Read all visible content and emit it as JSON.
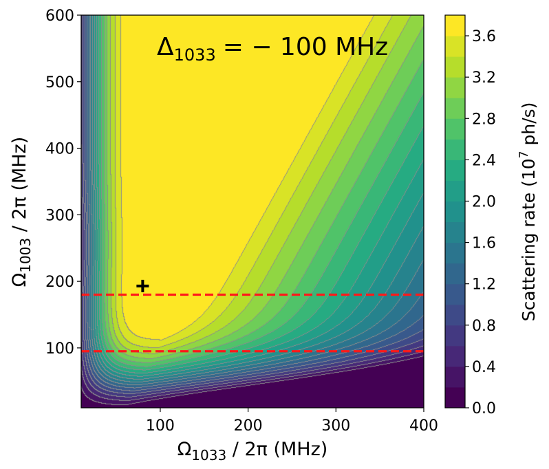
{
  "chart_data": {
    "type": "heatmap",
    "subtype": "filled-contour",
    "title": "",
    "annotation": {
      "delta_symbol": "Δ",
      "subscript": "1033",
      "text": "= − 100 MHz"
    },
    "x_axis": {
      "label": {
        "main": "Ω",
        "sub": "1033",
        "rest": " / 2π (MHz)"
      },
      "range": [
        10,
        400
      ],
      "ticks": [
        100,
        200,
        300,
        400
      ],
      "tick_labels": [
        "100",
        "200",
        "300",
        "400"
      ]
    },
    "y_axis": {
      "label": {
        "main": "Ω",
        "sub": "1003",
        "rest": " / 2π (MHz)"
      },
      "range": [
        10,
        600
      ],
      "ticks": [
        100,
        200,
        300,
        400,
        500,
        600
      ],
      "tick_labels": [
        "100",
        "200",
        "300",
        "400",
        "500",
        "600"
      ]
    },
    "colorbar": {
      "label": "Scattering rate (10",
      "label_sup": "7",
      "label_end": " ph/s)",
      "range": [
        0,
        3.8
      ],
      "levels": [
        0.0,
        0.2,
        0.4,
        0.6,
        0.8,
        1.0,
        1.2,
        1.4,
        1.6,
        1.8,
        2.0,
        2.2,
        2.4,
        2.6,
        2.8,
        3.0,
        3.2,
        3.4,
        3.6,
        3.8
      ],
      "ticks": [
        0.0,
        0.4,
        0.8,
        1.2,
        1.6,
        2.0,
        2.4,
        2.8,
        3.2,
        3.6
      ],
      "tick_labels": [
        "0.0",
        "0.4",
        "0.8",
        "1.2",
        "1.6",
        "2.0",
        "2.4",
        "2.8",
        "3.2",
        "3.6"
      ]
    },
    "hlines": [
      {
        "y": 180,
        "color": "#ff1a1a",
        "style": "dashed"
      },
      {
        "y": 95,
        "color": "#ff1a1a",
        "style": "dashed"
      }
    ],
    "marker": {
      "x": 80,
      "y": 193,
      "symbol": "plus",
      "color": "#000000"
    },
    "colors": {
      "contour_line": "#8c8c8c",
      "viridis": [
        "#440154",
        "#482475",
        "#414487",
        "#355f8d",
        "#2a788e",
        "#21918c",
        "#22a884",
        "#44bf70",
        "#7ad151",
        "#bddf26",
        "#fde725"
      ]
    }
  }
}
